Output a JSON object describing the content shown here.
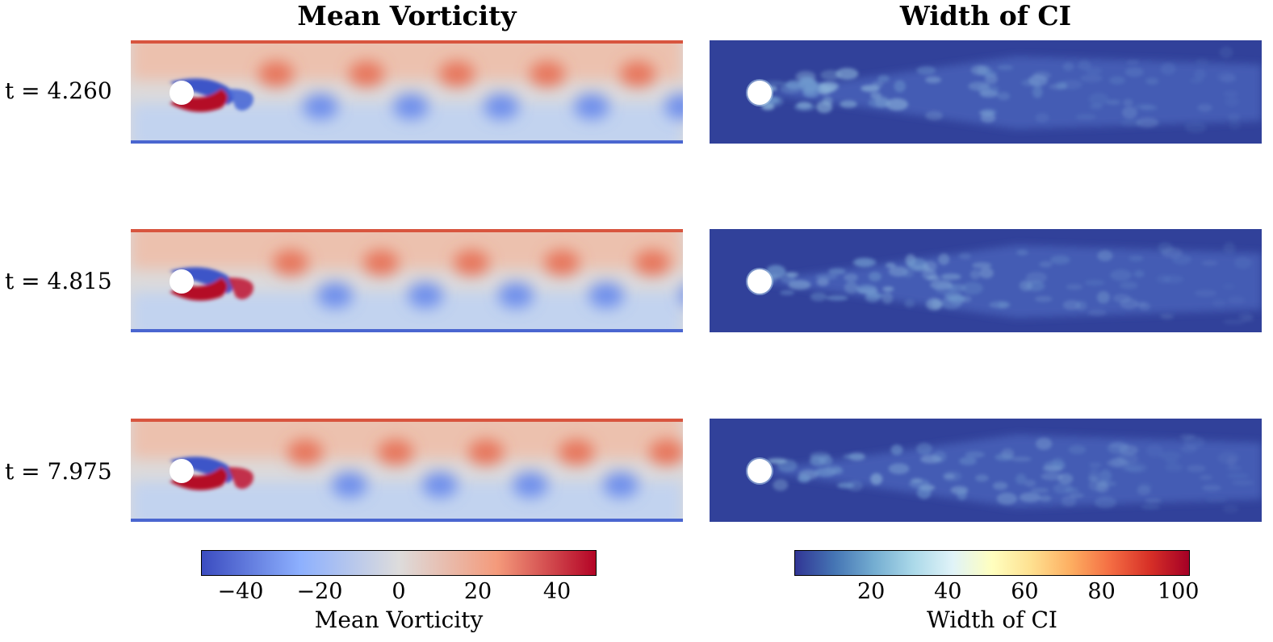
{
  "titles": {
    "left": "Mean Vorticity",
    "right": "Width of CI"
  },
  "rows": [
    {
      "label": "t = 4.260"
    },
    {
      "label": "t = 4.815"
    },
    {
      "label": "t = 7.975"
    }
  ],
  "colorbars": {
    "left": {
      "label": "Mean Vorticity",
      "ticks": [
        "−40",
        "−20",
        "0",
        "20",
        "40"
      ],
      "tick_values": [
        -40,
        -20,
        0,
        20,
        40
      ],
      "range": [
        -50,
        50
      ],
      "colormap": [
        "#3b4cc0",
        "#8db0fe",
        "#dddcdc",
        "#f49a7b",
        "#b40426"
      ]
    },
    "right": {
      "label": "Width of CI",
      "ticks": [
        "20",
        "40",
        "60",
        "80",
        "100"
      ],
      "tick_values": [
        20,
        40,
        60,
        80,
        100
      ],
      "range": [
        0,
        103
      ],
      "colormap": [
        "#313695",
        "#4575b4",
        "#74add1",
        "#abd9e9",
        "#e0f3f8",
        "#ffffbf",
        "#fee090",
        "#fdae61",
        "#f46d43",
        "#d73027",
        "#a50026"
      ]
    }
  },
  "chart_data": [
    {
      "type": "heatmap",
      "title": "Mean Vorticity",
      "colorbar_label": "Mean Vorticity",
      "vmin": -50,
      "vmax": 50,
      "panels": [
        "t = 4.260",
        "t = 4.815",
        "t = 7.975"
      ]
    },
    {
      "type": "heatmap",
      "title": "Width of CI",
      "colorbar_label": "Width of CI",
      "vmin": 0,
      "vmax": 103,
      "panels": [
        "t = 4.260",
        "t = 4.815",
        "t = 7.975"
      ]
    }
  ]
}
